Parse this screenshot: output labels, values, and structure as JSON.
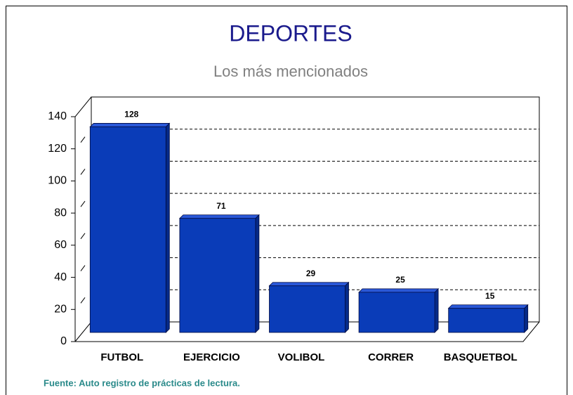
{
  "chart_data": {
    "type": "bar",
    "title": "DEPORTES",
    "subtitle": "Los más mencionados",
    "categories": [
      "FUTBOL",
      "EJERCICIO",
      "VOLIBOL",
      "CORRER",
      "BASQUETBOL"
    ],
    "values": [
      128,
      71,
      29,
      25,
      15
    ],
    "color": "#0a3cb8",
    "ylim": [
      0,
      140
    ],
    "yticks": [
      0,
      20,
      40,
      60,
      80,
      100,
      120,
      140
    ],
    "grid": true,
    "source": "Fuente: Auto registro de prácticas de lectura."
  }
}
